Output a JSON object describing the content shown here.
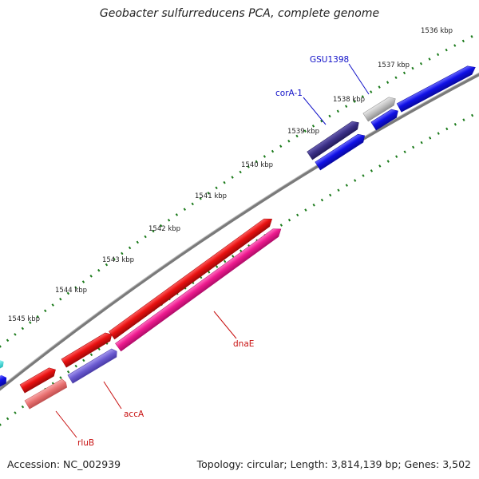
{
  "title": "Geobacter sulfurreducens PCA, complete genome",
  "footer": {
    "accession": "Accession: NC_002939",
    "summary": "Topology: circular; Length: 3,814,139 bp; Genes: 3,502"
  },
  "ticks": [
    "1536 kbp",
    "1537 kbp",
    "1538 kbp",
    "1539 kbp",
    "1540 kbp",
    "1541 kbp",
    "1542 kbp",
    "1543 kbp",
    "1544 kbp",
    "1545 kbp"
  ],
  "gene_labels": {
    "gsu1398": "GSU1398",
    "cora1": "corA-1",
    "dnae": "dnaE",
    "acca": "accA",
    "rlub": "rluB"
  },
  "colors": {
    "backbone": "#7a7a7a",
    "tick": "#1a7a1a",
    "blue": "#1010e6",
    "dark_purple": "#3a2f86",
    "gray_feature": "#c0c0c0",
    "red": "#e81010",
    "magenta": "#ee1a8f",
    "light_purple": "#6a5ad0",
    "salmon": "#e87070",
    "cyan": "#22dddd",
    "blue_label": "#1010c8",
    "red_label": "#c81010"
  }
}
